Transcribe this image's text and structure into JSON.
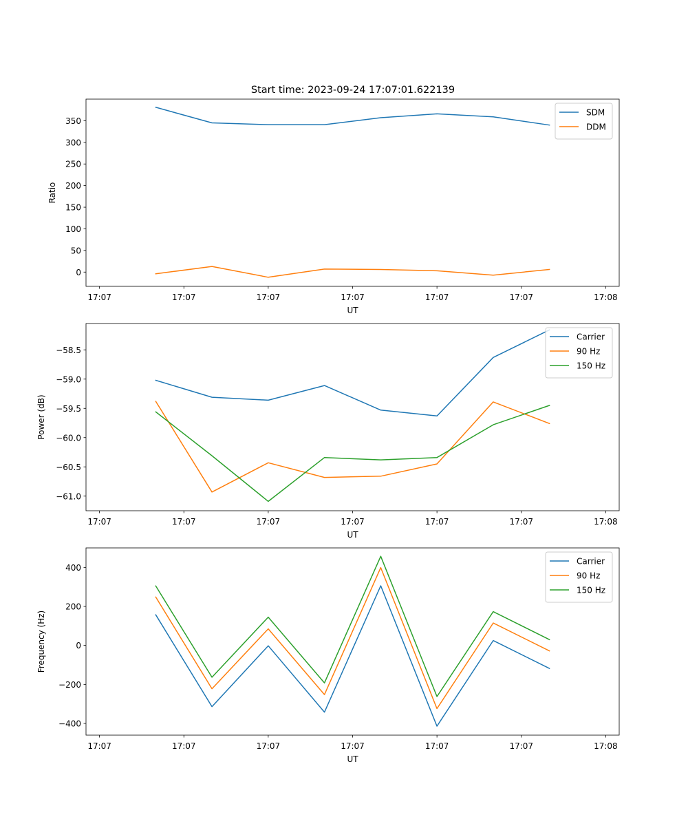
{
  "figure": {
    "title": "Start time: 2023-09-24 17:07:01.622139"
  },
  "colors": {
    "blue": "#1f77b4",
    "orange": "#ff7f0e",
    "green": "#2ca02c"
  },
  "chart_data": [
    {
      "type": "line",
      "title": "Start time: 2023-09-24 17:07:01.622139",
      "xlabel": "UT",
      "ylabel": "Ratio",
      "x": [
        0.5,
        1.0,
        1.5,
        2.0,
        2.5,
        3.0,
        3.5,
        4.0
      ],
      "xlim": [
        -0.12,
        4.62
      ],
      "xticks": [
        0,
        0.75,
        1.5,
        2.25,
        3.0,
        3.75,
        4.5
      ],
      "xtick_labels": [
        "17:07",
        "17:07",
        "17:07",
        "17:07",
        "17:07",
        "17:07",
        "17:08"
      ],
      "ylim": [
        -33,
        400
      ],
      "yticks": [
        0,
        50,
        100,
        150,
        200,
        250,
        300,
        350
      ],
      "ytick_labels": [
        "0",
        "50",
        "100",
        "150",
        "200",
        "250",
        "300",
        "350"
      ],
      "legend": "top-right",
      "series": [
        {
          "name": "SDM",
          "color": "#1f77b4",
          "values": [
            381,
            345,
            341,
            341,
            357,
            366,
            359,
            340
          ]
        },
        {
          "name": "DDM",
          "color": "#ff7f0e",
          "values": [
            -4,
            13,
            -12,
            7,
            6,
            3,
            -7,
            6
          ]
        }
      ]
    },
    {
      "type": "line",
      "xlabel": "UT",
      "ylabel": "Power (dB)",
      "x": [
        0.5,
        1.0,
        1.5,
        2.0,
        2.5,
        3.0,
        3.5,
        4.0
      ],
      "xlim": [
        -0.12,
        4.62
      ],
      "xticks": [
        0,
        0.75,
        1.5,
        2.25,
        3.0,
        3.75,
        4.5
      ],
      "xtick_labels": [
        "17:07",
        "17:07",
        "17:07",
        "17:07",
        "17:07",
        "17:07",
        "17:08"
      ],
      "ylim": [
        -61.25,
        -58.05
      ],
      "yticks": [
        -61.0,
        -60.5,
        -60.0,
        -59.5,
        -59.0,
        -58.5
      ],
      "ytick_labels": [
        "−61.0",
        "−60.5",
        "−60.0",
        "−59.5",
        "−59.0",
        "−58.5"
      ],
      "legend": "top-right",
      "series": [
        {
          "name": "Carrier",
          "color": "#1f77b4",
          "values": [
            -59.02,
            -59.31,
            -59.36,
            -59.11,
            -59.53,
            -59.63,
            -58.63,
            -58.16
          ]
        },
        {
          "name": "90 Hz",
          "color": "#ff7f0e",
          "values": [
            -59.38,
            -60.93,
            -60.43,
            -60.68,
            -60.66,
            -60.45,
            -59.39,
            -59.76
          ]
        },
        {
          "name": "150 Hz",
          "color": "#2ca02c",
          "values": [
            -59.56,
            -60.31,
            -61.09,
            -60.34,
            -60.38,
            -60.34,
            -59.78,
            -59.45
          ]
        }
      ]
    },
    {
      "type": "line",
      "xlabel": "UT",
      "ylabel": "Frequency (Hz)",
      "x": [
        0.5,
        1.0,
        1.5,
        2.0,
        2.5,
        3.0,
        3.5,
        4.0
      ],
      "xlim": [
        -0.12,
        4.62
      ],
      "xticks": [
        0,
        0.75,
        1.5,
        2.25,
        3.0,
        3.75,
        4.5
      ],
      "xtick_labels": [
        "17:07",
        "17:07",
        "17:07",
        "17:07",
        "17:07",
        "17:07",
        "17:08"
      ],
      "ylim": [
        -460,
        500
      ],
      "yticks": [
        -400,
        -200,
        0,
        200,
        400
      ],
      "ytick_labels": [
        "−400",
        "−200",
        "0",
        "200",
        "400"
      ],
      "legend": "top-right",
      "series": [
        {
          "name": "Carrier",
          "color": "#1f77b4",
          "values": [
            157,
            -314,
            -2,
            -342,
            306,
            -414,
            25,
            -118
          ]
        },
        {
          "name": "90 Hz",
          "color": "#ff7f0e",
          "values": [
            248,
            -222,
            85,
            -252,
            399,
            -324,
            115,
            -28
          ]
        },
        {
          "name": "150 Hz",
          "color": "#2ca02c",
          "values": [
            305,
            -163,
            145,
            -192,
            457,
            -262,
            173,
            30
          ]
        }
      ]
    }
  ]
}
